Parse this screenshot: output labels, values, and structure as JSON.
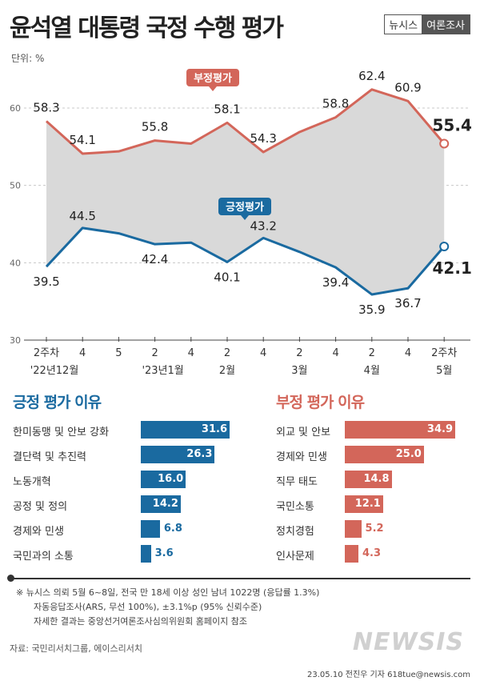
{
  "header": {
    "title": "윤석열 대통령 국정 수행 평가",
    "brand_left": "뉴시스",
    "brand_right": "여론조사",
    "unit": "단위: %"
  },
  "colors": {
    "positive": "#1a6aa0",
    "negative": "#d3665a",
    "band": "#d9d9d9"
  },
  "chart_data": [
    {
      "type": "line",
      "x_ticks": [
        "2주차",
        "4",
        "5",
        "2",
        "4",
        "2",
        "4",
        "2",
        "4",
        "2",
        "4",
        "2주차"
      ],
      "x_groups": [
        "'22년12월",
        "'23년1월",
        "2월",
        "3월",
        "4월",
        "5월"
      ],
      "y_ticks": [
        30,
        40,
        50,
        60
      ],
      "ylim": [
        30,
        65
      ],
      "grid": true,
      "series": [
        {
          "name": "부정평가",
          "values": [
            58.3,
            54.1,
            54.4,
            55.8,
            55.4,
            58.1,
            54.3,
            56.9,
            58.8,
            62.4,
            60.9,
            55.4
          ],
          "labels": [
            "58.3",
            "54.1",
            "",
            "55.8",
            "",
            "58.1",
            "54.3",
            "",
            "58.8",
            "62.4",
            "60.9",
            "55.4"
          ]
        },
        {
          "name": "긍정평가",
          "values": [
            39.5,
            44.5,
            43.8,
            42.4,
            42.6,
            40.1,
            43.2,
            41.4,
            39.4,
            35.9,
            36.7,
            42.1
          ],
          "labels": [
            "39.5",
            "44.5",
            "",
            "42.4",
            "",
            "40.1",
            "43.2",
            "",
            "39.4",
            "35.9",
            "36.7",
            "42.1"
          ]
        }
      ]
    },
    {
      "type": "bar",
      "title": "긍정 평가 이유",
      "categories": [
        "한미동맹 및 안보 강화",
        "결단력 및 추진력",
        "노동개혁",
        "공정 및 정의",
        "경제와 민생",
        "국민과의 소통"
      ],
      "values": [
        31.6,
        26.3,
        16.0,
        14.2,
        6.8,
        3.6
      ],
      "value_labels": [
        "31.6",
        "26.3",
        "16.0",
        "14.2",
        "6.8",
        "3.6"
      ]
    },
    {
      "type": "bar",
      "title": "부정 평가 이유",
      "categories": [
        "외교 및 안보",
        "경제와 민생",
        "직무 태도",
        "국민소통",
        "정치경험",
        "인사문제"
      ],
      "values": [
        34.9,
        25.0,
        14.8,
        12.1,
        5.2,
        4.3
      ],
      "value_labels": [
        "34.9",
        "25.0",
        "14.8",
        "12.1",
        "5.2",
        "4.3"
      ]
    }
  ],
  "notes": [
    "※ 뉴시스 의뢰 5월 6~8일, 전국 만 18세 이상 성인 남녀 1022명 (응답률 1.3%)",
    "자동응답조사(ARS, 무선 100%), ±3.1%p (95% 신뢰수준)",
    "자세한 결과는 중앙선거여론조사심의위원회 홈페이지 참조"
  ],
  "source": "자료: 국민리서치그룹, 에이스리서치",
  "watermark": "NEWSIS",
  "credit": "23.05.10 전진우 기자 618tue@newsis.com"
}
